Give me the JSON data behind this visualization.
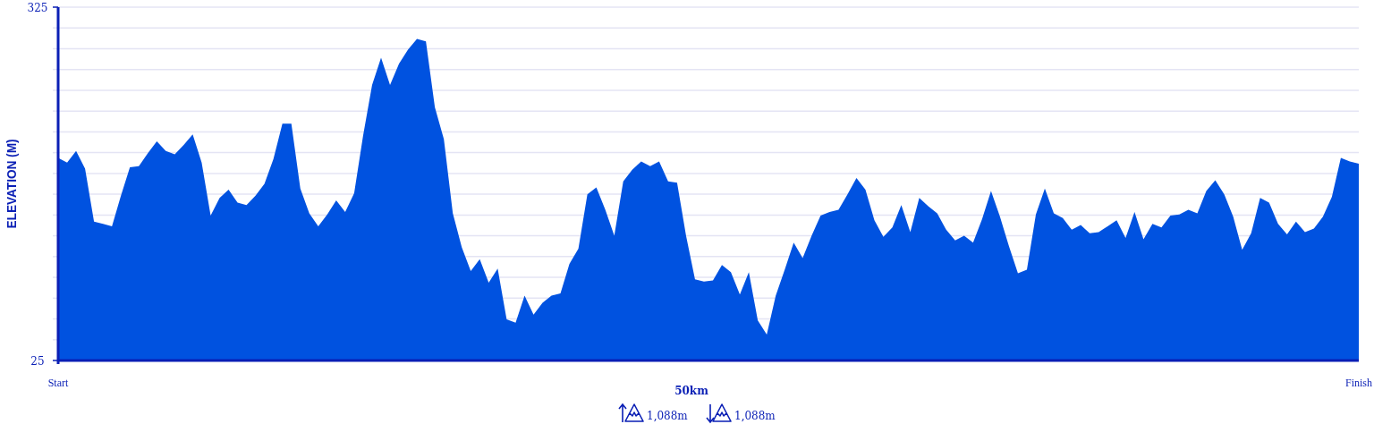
{
  "chart_data": {
    "type": "area",
    "ylabel": "ELEVATION (M)",
    "xlabel": "50km",
    "categories": [
      "Start",
      null,
      null,
      null,
      null,
      null,
      null,
      null,
      null,
      null,
      null,
      null,
      null,
      null,
      null,
      null,
      null,
      null,
      null,
      null,
      null,
      null,
      null,
      null,
      null,
      null,
      null,
      null,
      null,
      null,
      null,
      null,
      null,
      null,
      null,
      null,
      null,
      null,
      null,
      null,
      null,
      null,
      null,
      null,
      null,
      null,
      null,
      null,
      null,
      null,
      null,
      null,
      null,
      null,
      null,
      null,
      null,
      null,
      null,
      null,
      null,
      null,
      null,
      null,
      null,
      null,
      null,
      null,
      null,
      null,
      null,
      null,
      null,
      null,
      null,
      null,
      null,
      null,
      null,
      null,
      null,
      null,
      null,
      null,
      null,
      null,
      null,
      null,
      null,
      null,
      null,
      null,
      null,
      null,
      null,
      null,
      null,
      null,
      null,
      null,
      null,
      null,
      null,
      null,
      null,
      null,
      null,
      null,
      null,
      null,
      null,
      null,
      null,
      null,
      null,
      null,
      null,
      null,
      null,
      null,
      null,
      null,
      null,
      null,
      null,
      null,
      null,
      null,
      null,
      null,
      null,
      null,
      null,
      null,
      null,
      null,
      null,
      null,
      null,
      null,
      null,
      null,
      null,
      null,
      null,
      "Finish"
    ],
    "ylim": [
      25,
      325
    ],
    "yticks": [
      25,
      {
        "value": 42.6,
        "label": null
      },
      {
        "value": 60.3,
        "label": null
      },
      {
        "value": 77.9,
        "label": null
      },
      {
        "value": 95.6,
        "label": null
      },
      {
        "value": 113.2,
        "label": null
      },
      {
        "value": 130.9,
        "label": null
      },
      {
        "value": 148.5,
        "label": null
      },
      {
        "value": 166.2,
        "label": null
      },
      {
        "value": 183.8,
        "label": null
      },
      {
        "value": 201.5,
        "label": null
      },
      {
        "value": 219.1,
        "label": null
      },
      {
        "value": 236.8,
        "label": null
      },
      {
        "value": 254.4,
        "label": null
      },
      {
        "value": 272.1,
        "label": null
      },
      {
        "value": 289.7,
        "label": null
      },
      {
        "value": 307.4,
        "label": null
      },
      325
    ],
    "grid": "y",
    "annotations": [
      "1,088m",
      "1,088m"
    ],
    "series": [
      {
        "color": "#0052e0",
        "values": [
          197,
          193,
          203,
          188,
          143,
          141,
          139,
          165,
          189,
          190,
          201,
          211,
          203,
          200,
          208,
          217,
          193,
          148,
          163,
          170,
          159,
          157,
          165,
          175,
          196,
          226,
          226,
          171,
          150,
          139,
          149,
          161,
          151,
          167,
          216,
          259,
          282,
          259,
          277,
          289,
          298,
          296,
          240,
          213,
          150,
          121,
          101,
          111,
          91,
          103,
          60,
          57,
          80,
          64,
          74,
          80,
          82,
          107,
          120,
          166,
          172,
          153,
          131,
          177,
          187,
          194,
          190,
          194,
          177,
          176,
          131,
          94,
          92,
          93,
          106,
          100,
          81,
          100,
          59,
          47,
          80,
          102,
          125,
          112,
          131,
          148,
          151,
          153,
          166,
          180,
          170,
          144,
          130,
          138,
          157,
          134,
          163,
          156,
          150,
          136,
          127,
          131,
          125,
          145,
          169,
          147,
          122,
          99,
          102,
          149,
          171,
          150,
          146,
          136,
          140,
          133,
          134,
          139,
          144,
          129,
          151,
          128,
          141,
          138,
          148,
          149,
          153,
          150,
          169,
          178,
          166,
          147,
          119,
          133,
          163,
          159,
          141,
          132,
          143,
          134,
          137,
          147,
          164,
          197,
          194,
          192
        ]
      }
    ]
  }
}
